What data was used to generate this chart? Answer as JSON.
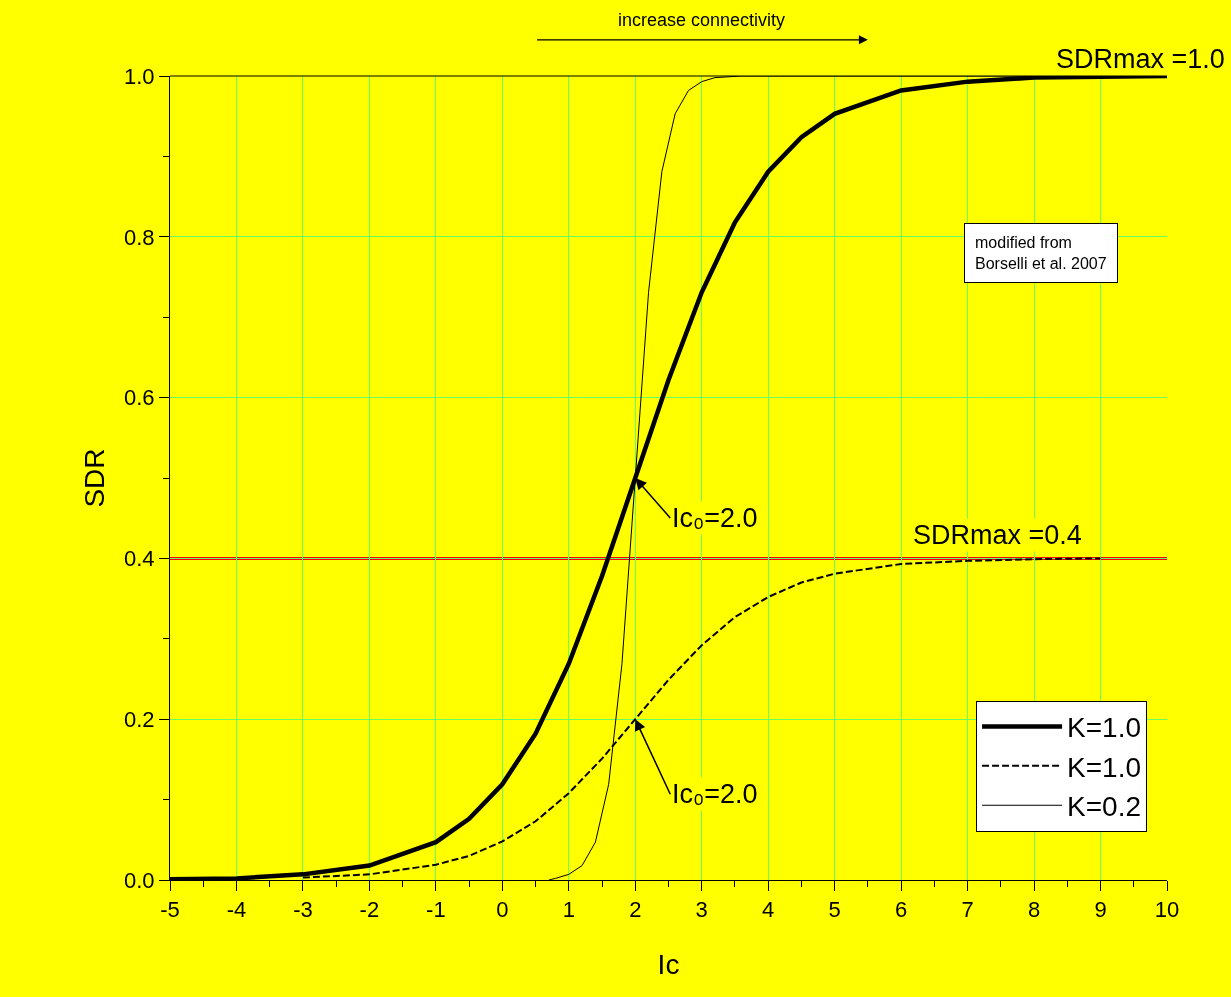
{
  "chart_data": {
    "type": "line",
    "xlabel": "Ic",
    "ylabel": "SDR",
    "xlim": [
      -5,
      10
    ],
    "ylim": [
      0,
      1
    ],
    "xticks": [
      -5,
      {
        "value": -4.5,
        "label": null
      },
      -4,
      {
        "value": -3.5,
        "label": null
      },
      -3,
      {
        "value": -2.5,
        "label": null
      },
      -2,
      {
        "value": -1.5,
        "label": null
      },
      -1,
      {
        "value": -0.5,
        "label": null
      },
      0,
      {
        "value": 0.5,
        "label": null
      },
      1,
      {
        "value": 1.5,
        "label": null
      },
      2,
      {
        "value": 2.5,
        "label": null
      },
      3,
      {
        "value": 3.5,
        "label": null
      },
      4,
      {
        "value": 4.5,
        "label": null
      },
      5,
      {
        "value": 5.5,
        "label": null
      },
      6,
      {
        "value": 6.5,
        "label": null
      },
      7,
      {
        "value": 7.5,
        "label": null
      },
      8,
      {
        "value": 8.5,
        "label": null
      },
      9,
      {
        "value": 9.5,
        "label": null
      },
      10
    ],
    "yticks": [
      {
        "value": 0,
        "label": "0.0"
      },
      {
        "value": 0.1,
        "label": null
      },
      {
        "value": 0.2,
        "label": "0.2"
      },
      {
        "value": 0.3,
        "label": null
      },
      {
        "value": 0.4,
        "label": "0.4"
      },
      {
        "value": 0.5,
        "label": null
      },
      {
        "value": 0.6,
        "label": "0.6"
      },
      {
        "value": 0.7,
        "label": null
      },
      {
        "value": 0.8,
        "label": "0.8"
      },
      {
        "value": 0.9,
        "label": null
      },
      {
        "value": 1,
        "label": "1.0"
      }
    ],
    "grid": true,
    "legend": "bottom right",
    "marker": "none",
    "series": [
      {
        "name": "K=1.0",
        "color": "#000000",
        "line_style": "solid",
        "x": [
          -5,
          -4,
          -3,
          -2,
          -1,
          -0.5,
          0,
          0.5,
          1,
          1.5,
          2,
          2.5,
          3,
          3.5,
          4,
          4.5,
          5,
          6,
          7,
          8,
          9,
          10
        ],
        "values": [
          0.001,
          0.002,
          0.007,
          0.018,
          0.047,
          0.076,
          0.119,
          0.182,
          0.269,
          0.378,
          0.5,
          0.622,
          0.731,
          0.818,
          0.881,
          0.924,
          0.953,
          0.982,
          0.993,
          0.998,
          0.999,
          1.0
        ]
      },
      {
        "name": "K=1.0",
        "color": "#000000",
        "line_style": "dashed",
        "x": [
          -3,
          -2,
          -1,
          -0.5,
          0,
          0.5,
          1,
          1.5,
          2,
          2.5,
          3,
          3.5,
          4,
          4.5,
          5,
          6,
          7,
          8,
          9
        ],
        "values": [
          0.003,
          0.007,
          0.019,
          0.03,
          0.048,
          0.073,
          0.108,
          0.151,
          0.2,
          0.249,
          0.292,
          0.327,
          0.352,
          0.37,
          0.381,
          0.393,
          0.397,
          0.399,
          0.4
        ]
      },
      {
        "name": "K=0.2",
        "color": "#000000",
        "line_style": "solid",
        "x": [
          0.7,
          0.8,
          1,
          1.2,
          1.4,
          1.6,
          1.8,
          2,
          2.2,
          2.4,
          2.6,
          2.8,
          3,
          3.2,
          3.6,
          10
        ],
        "values": [
          0.0,
          0.002,
          0.007,
          0.018,
          0.047,
          0.119,
          0.269,
          0.5,
          0.731,
          0.881,
          0.953,
          0.982,
          0.993,
          0.998,
          1.0,
          1.0
        ]
      }
    ],
    "ref_lines": [
      {
        "axis": "y",
        "value": 0.4,
        "label": "SDRmax =0.4",
        "color": "#ff0000"
      }
    ],
    "annotations": [
      "SDRmax =1.0",
      {
        "text": "Ic₀=2.0",
        "x": 2,
        "y": 0.5
      },
      {
        "text": "Ic₀=2.0",
        "x": 2,
        "y": 0.2
      },
      "increase connectivity",
      "modified from\nBorselli et al. 2007"
    ]
  }
}
